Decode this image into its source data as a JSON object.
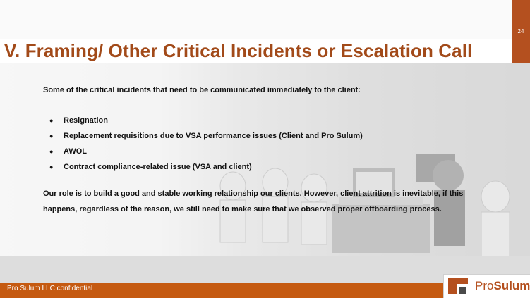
{
  "slide": {
    "page_number": "24",
    "title": "V. Framing/ Other Critical Incidents or Escalation Call",
    "intro": "Some of the critical incidents that need to be communicated immediately to the client:",
    "bullets": [
      "Resignation",
      "Replacement requisitions due to VSA performance issues (Client and Pro Sulum)",
      "AWOL",
      "Contract compliance-related issue (VSA and client)"
    ],
    "closing": "Our role is to build a good and stable working relationship our clients. However, client attrition is inevitable, if this happens, regardless of the reason, we still need to make sure that we observed proper offboarding process.",
    "footer": "Pro Sulum LLC confidential"
  },
  "logo": {
    "text_light": "Pro",
    "text_bold": "Sulum",
    "icon": "prosulum-logo-icon"
  },
  "colors": {
    "accent": "#b4501f",
    "title": "#a24a19",
    "footer": "#c55a11",
    "body_text": "#111111"
  },
  "icons": {
    "bullet": "●"
  }
}
